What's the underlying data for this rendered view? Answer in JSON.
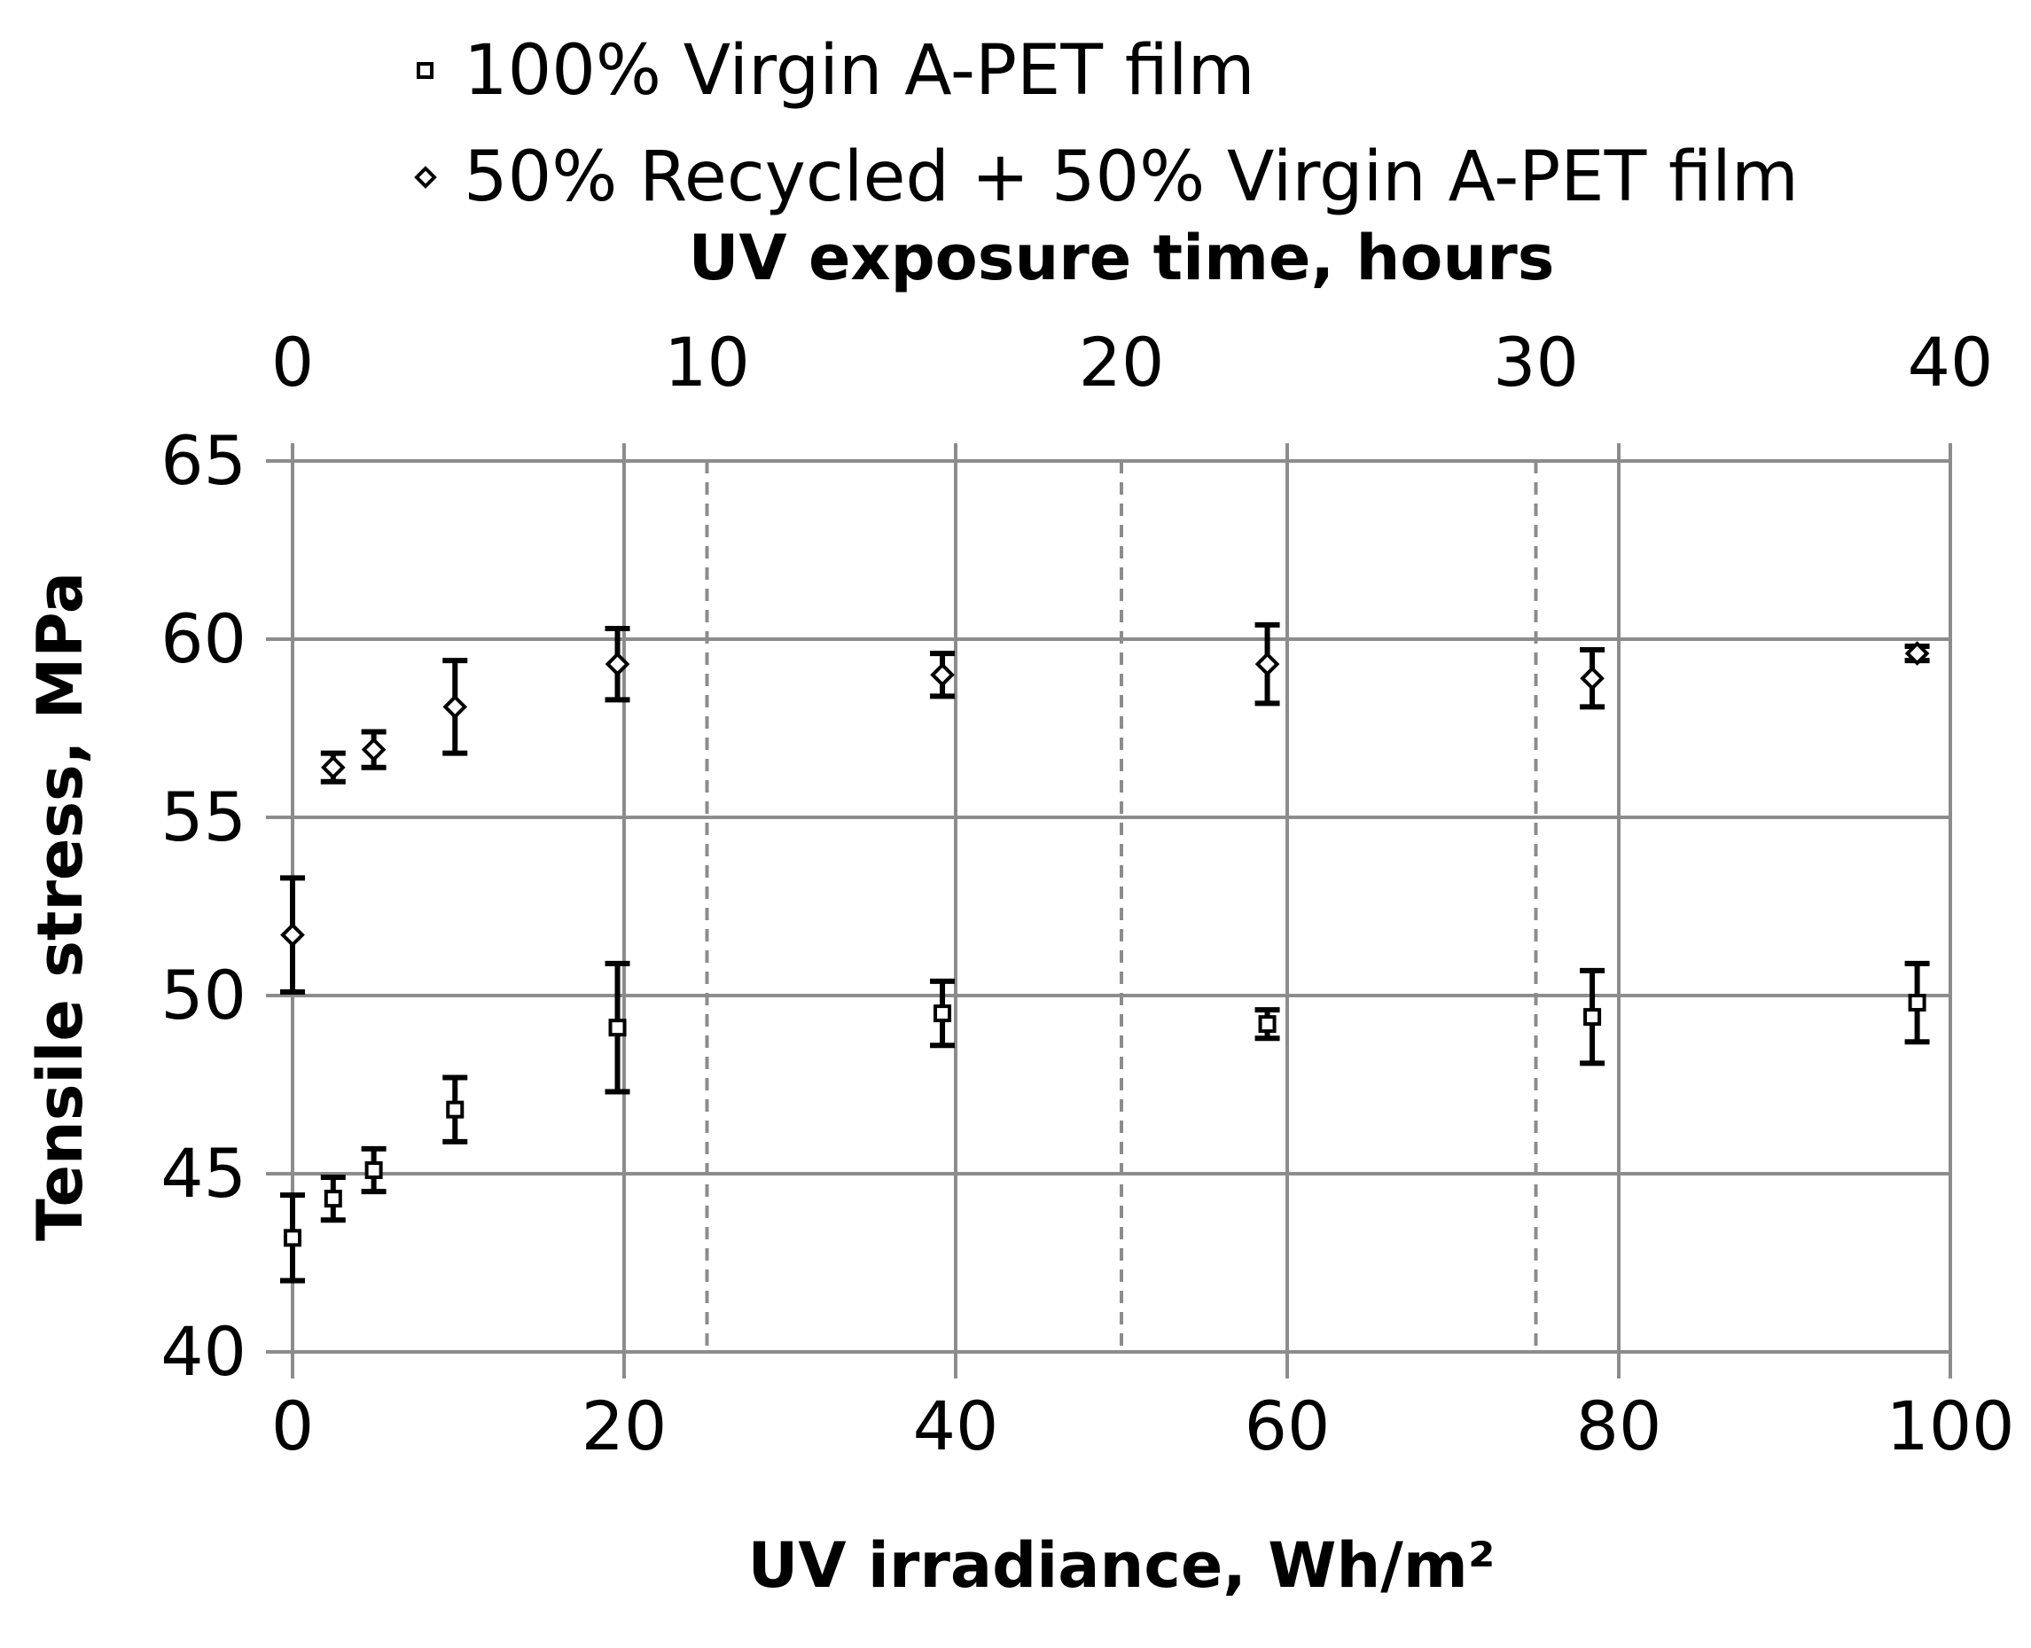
{
  "chart_data": {
    "type": "scatter",
    "title": "",
    "xlabel": "UV irradiance, Wh/m²",
    "x2label": "UV exposure time, hours",
    "ylabel": "Tensile stress, MPa",
    "xlim": [
      0,
      100
    ],
    "x2lim": [
      0,
      40
    ],
    "ylim": [
      40,
      65
    ],
    "x_ticks": [
      "0",
      "20",
      "40",
      "60",
      "80",
      "100"
    ],
    "x2_ticks": [
      "0",
      "10",
      "20",
      "30",
      "40"
    ],
    "y_ticks": [
      "40",
      "45",
      "50",
      "55",
      "60",
      "65"
    ],
    "grid": true,
    "legend_position": "top",
    "series": [
      {
        "name": "100% Virgin A-PET film",
        "marker": "square",
        "x": [
          0,
          2.45,
          4.9,
          9.8,
          19.6,
          39.2,
          58.8,
          78.4,
          98
        ],
        "y": [
          43.2,
          44.3,
          45.1,
          46.8,
          49.1,
          49.5,
          49.2,
          49.4,
          49.8
        ],
        "yerr": [
          1.2,
          0.6,
          0.6,
          0.9,
          1.8,
          0.9,
          0.4,
          1.3,
          1.1
        ]
      },
      {
        "name": "50% Recycled + 50% Virgin A-PET film",
        "marker": "diamond",
        "x": [
          0,
          2.45,
          4.9,
          9.8,
          19.6,
          39.2,
          58.8,
          78.4,
          98
        ],
        "y": [
          51.7,
          56.4,
          56.9,
          58.1,
          59.3,
          59.0,
          59.3,
          58.9,
          59.6
        ],
        "yerr": [
          1.6,
          0.4,
          0.5,
          1.3,
          1.0,
          0.6,
          1.1,
          0.8,
          0.2
        ]
      }
    ]
  }
}
